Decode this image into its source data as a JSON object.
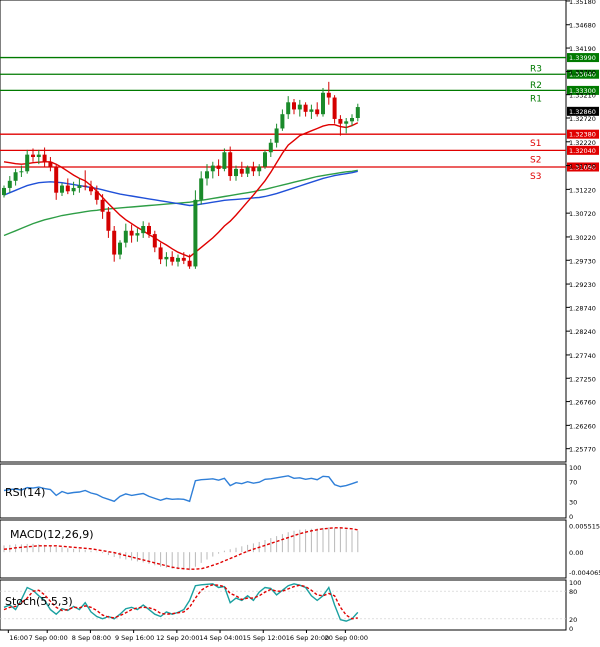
{
  "chart_data": {
    "type": "candlestick",
    "instrument_timeframe": "H4",
    "price_axis": {
      "ylim": [
        1.2549,
        1.352
      ],
      "tick_labels": [
        "1.35180",
        "1.34680",
        "1.34190",
        "1.33700",
        "1.33210",
        "1.32720",
        "1.32220",
        "1.31720",
        "1.31220",
        "1.30720",
        "1.30220",
        "1.29730",
        "1.29230",
        "1.28740",
        "1.28240",
        "1.27740",
        "1.27250",
        "1.26760",
        "1.26260",
        "1.25770"
      ],
      "tick_values": [
        1.3518,
        1.3468,
        1.3419,
        1.337,
        1.3321,
        1.3272,
        1.3222,
        1.3172,
        1.3122,
        1.3072,
        1.3022,
        1.2973,
        1.2923,
        1.2874,
        1.2824,
        1.2774,
        1.2725,
        1.2676,
        1.2626,
        1.2577
      ]
    },
    "time_axis": {
      "labels": [
        "16:00",
        "7 Sep 00:00",
        "8 Sep 08:00",
        "9 Sep 16:00",
        "12 Sep 20:00",
        "14 Sep 04:00",
        "15 Sep 12:00",
        "16 Sep 20:00",
        "20 Sep 00:00"
      ],
      "label_bar_index": [
        1,
        10,
        20,
        30,
        40,
        50,
        60,
        70,
        79
      ]
    },
    "current_price": {
      "label": "1.32860",
      "value": 1.3286
    },
    "levels": [
      {
        "name": "R3",
        "label": "1.33990",
        "value": 1.3399,
        "color": "#007a00"
      },
      {
        "name": "R2",
        "label": "1.33640",
        "value": 1.3364,
        "color": "#007a00"
      },
      {
        "name": "R1",
        "label": "1.33300",
        "value": 1.333,
        "color": "#007a00"
      },
      {
        "name": "S1",
        "label": "1.32380",
        "value": 1.3238,
        "color": "#e00000"
      },
      {
        "name": "S2",
        "label": "1.32040",
        "value": 1.3204,
        "color": "#e00000"
      },
      {
        "name": "S3",
        "label": "1.31690",
        "value": 1.3169,
        "color": "#e00000"
      }
    ],
    "candles": [
      [
        1.311,
        1.313,
        1.3105,
        1.3125
      ],
      [
        1.3125,
        1.315,
        1.3115,
        1.314
      ],
      [
        1.314,
        1.3165,
        1.313,
        1.3158
      ],
      [
        1.3158,
        1.3172,
        1.3148,
        1.316
      ],
      [
        1.316,
        1.3205,
        1.3155,
        1.3195
      ],
      [
        1.3195,
        1.3208,
        1.318,
        1.319
      ],
      [
        1.319,
        1.3205,
        1.3175,
        1.3195
      ],
      [
        1.3195,
        1.321,
        1.317,
        1.318
      ],
      [
        1.318,
        1.319,
        1.316,
        1.3168
      ],
      [
        1.3168,
        1.3175,
        1.31,
        1.3115
      ],
      [
        1.3115,
        1.3135,
        1.3108,
        1.313
      ],
      [
        1.313,
        1.3145,
        1.3112,
        1.3118
      ],
      [
        1.3118,
        1.3138,
        1.311,
        1.3125
      ],
      [
        1.3125,
        1.3145,
        1.3115,
        1.313
      ],
      [
        1.313,
        1.3162,
        1.312,
        1.3128
      ],
      [
        1.3128,
        1.314,
        1.311,
        1.3118
      ],
      [
        1.3118,
        1.313,
        1.309,
        1.31
      ],
      [
        1.31,
        1.3112,
        1.306,
        1.3075
      ],
      [
        1.3075,
        1.3085,
        1.302,
        1.3035
      ],
      [
        1.3035,
        1.3045,
        1.297,
        1.2985
      ],
      [
        1.2985,
        1.3015,
        1.2975,
        1.301
      ],
      [
        1.301,
        1.305,
        1.3,
        1.3035
      ],
      [
        1.3035,
        1.3048,
        1.301,
        1.3025
      ],
      [
        1.3025,
        1.304,
        1.3012,
        1.303
      ],
      [
        1.303,
        1.3055,
        1.302,
        1.3045
      ],
      [
        1.3045,
        1.3052,
        1.302,
        1.3028
      ],
      [
        1.3028,
        1.3035,
        1.299,
        1.3
      ],
      [
        1.3,
        1.301,
        1.2965,
        1.2975
      ],
      [
        1.2975,
        1.299,
        1.296,
        1.298
      ],
      [
        1.298,
        1.2992,
        1.2962,
        1.297
      ],
      [
        1.297,
        1.2985,
        1.296,
        1.2978
      ],
      [
        1.2978,
        1.299,
        1.2965,
        1.2972
      ],
      [
        1.2972,
        1.2985,
        1.2955,
        1.296
      ],
      [
        1.296,
        1.312,
        1.2955,
        1.31
      ],
      [
        1.31,
        1.316,
        1.309,
        1.3145
      ],
      [
        1.3145,
        1.3175,
        1.313,
        1.316
      ],
      [
        1.316,
        1.318,
        1.3145,
        1.3172
      ],
      [
        1.3172,
        1.3185,
        1.315,
        1.3165
      ],
      [
        1.3165,
        1.3208,
        1.316,
        1.32
      ],
      [
        1.32,
        1.3212,
        1.314,
        1.315
      ],
      [
        1.315,
        1.3172,
        1.314,
        1.3165
      ],
      [
        1.3165,
        1.318,
        1.3148,
        1.3155
      ],
      [
        1.3155,
        1.3172,
        1.3148,
        1.3168
      ],
      [
        1.3168,
        1.318,
        1.315,
        1.316
      ],
      [
        1.316,
        1.3175,
        1.315,
        1.317
      ],
      [
        1.317,
        1.3205,
        1.3165,
        1.32
      ],
      [
        1.32,
        1.3228,
        1.319,
        1.322
      ],
      [
        1.322,
        1.326,
        1.321,
        1.325
      ],
      [
        1.325,
        1.329,
        1.3245,
        1.328
      ],
      [
        1.328,
        1.3318,
        1.327,
        1.3305
      ],
      [
        1.3305,
        1.3312,
        1.328,
        1.329
      ],
      [
        1.329,
        1.331,
        1.3275,
        1.33
      ],
      [
        1.33,
        1.3305,
        1.3275,
        1.3285
      ],
      [
        1.3285,
        1.33,
        1.327,
        1.329
      ],
      [
        1.329,
        1.3305,
        1.3275,
        1.328
      ],
      [
        1.328,
        1.3335,
        1.3275,
        1.3325
      ],
      [
        1.3325,
        1.3348,
        1.33,
        1.3315
      ],
      [
        1.3315,
        1.332,
        1.326,
        1.327
      ],
      [
        1.327,
        1.3278,
        1.3235,
        1.326
      ],
      [
        1.326,
        1.3272,
        1.324,
        1.3265
      ],
      [
        1.3265,
        1.328,
        1.3255,
        1.3272
      ],
      [
        1.3272,
        1.3302,
        1.3265,
        1.3295
      ]
    ],
    "ma_red": [
      1.318,
      1.3178,
      1.3176,
      1.3175,
      1.3176,
      1.3178,
      1.3179,
      1.318,
      1.318,
      1.3175,
      1.3168,
      1.316,
      1.3152,
      1.3145,
      1.314,
      1.313,
      1.3118,
      1.3105,
      1.3092,
      1.308,
      1.3068,
      1.3058,
      1.305,
      1.3042,
      1.3035,
      1.3027,
      1.302,
      1.3012,
      1.3005,
      1.2997,
      1.299,
      1.2985,
      1.298,
      1.299,
      1.3,
      1.301,
      1.302,
      1.3032,
      1.3045,
      1.3055,
      1.3068,
      1.3082,
      1.3096,
      1.311,
      1.3125,
      1.314,
      1.3158,
      1.3178,
      1.3198,
      1.3215,
      1.3225,
      1.3235,
      1.324,
      1.3245,
      1.325,
      1.3255,
      1.3258,
      1.3258,
      1.3254,
      1.3252,
      1.3256,
      1.3262
    ],
    "ma_blue": [
      1.311,
      1.3115,
      1.312,
      1.3125,
      1.313,
      1.3133,
      1.3136,
      1.3137,
      1.3138,
      1.3137,
      1.3136,
      1.3134,
      1.3132,
      1.313,
      1.3128,
      1.3126,
      1.3124,
      1.3121,
      1.3118,
      1.3115,
      1.3112,
      1.311,
      1.3108,
      1.3106,
      1.3104,
      1.3102,
      1.31,
      1.3098,
      1.3096,
      1.3094,
      1.3092,
      1.309,
      1.3088,
      1.3089,
      1.3091,
      1.3093,
      1.3095,
      1.3097,
      1.3099,
      1.31,
      1.3101,
      1.3102,
      1.3103,
      1.3104,
      1.3105,
      1.3107,
      1.311,
      1.3113,
      1.3117,
      1.3121,
      1.3125,
      1.3129,
      1.3133,
      1.3137,
      1.3141,
      1.3145,
      1.3148,
      1.3151,
      1.3153,
      1.3155,
      1.3157,
      1.316
    ],
    "ma_green": [
      1.3025,
      1.303,
      1.3035,
      1.304,
      1.3045,
      1.305,
      1.3054,
      1.3058,
      1.3061,
      1.3064,
      1.3067,
      1.3069,
      1.3071,
      1.3073,
      1.3075,
      1.3077,
      1.3078,
      1.308,
      1.3081,
      1.3082,
      1.3083,
      1.3084,
      1.3085,
      1.3086,
      1.3087,
      1.3088,
      1.3089,
      1.309,
      1.3091,
      1.3092,
      1.3093,
      1.3094,
      1.3095,
      1.3097,
      1.3099,
      1.3101,
      1.3103,
      1.3105,
      1.3107,
      1.3109,
      1.3111,
      1.3113,
      1.3115,
      1.3117,
      1.312,
      1.3122,
      1.3125,
      1.3128,
      1.3131,
      1.3134,
      1.3137,
      1.314,
      1.3143,
      1.3146,
      1.3149,
      1.3151,
      1.3153,
      1.3155,
      1.3157,
      1.3159,
      1.316,
      1.3162
    ],
    "rsi": {
      "label": "RSI(14)",
      "ylim": [
        0,
        100
      ],
      "tick_labels": [
        "100",
        "70",
        "30",
        "0"
      ],
      "tick_values": [
        100,
        70,
        30,
        0
      ],
      "values": [
        52,
        54,
        55,
        53,
        58,
        57,
        59,
        56,
        54,
        42,
        50,
        46,
        48,
        49,
        52,
        47,
        44,
        38,
        34,
        30,
        40,
        45,
        42,
        44,
        46,
        40,
        36,
        32,
        36,
        34,
        35,
        34,
        30,
        72,
        74,
        75,
        76,
        73,
        77,
        62,
        68,
        66,
        70,
        67,
        69,
        75,
        76,
        78,
        80,
        82,
        77,
        78,
        75,
        77,
        74,
        81,
        80,
        64,
        60,
        62,
        66,
        70
      ]
    },
    "macd": {
      "label": "MACD(12,26,9)",
      "ylim": [
        -0.0049,
        0.0062
      ],
      "tick_labels": [
        "0.005515",
        "0.00",
        "-0.004065"
      ],
      "tick_values": [
        0.005515,
        0.0,
        -0.004065
      ],
      "histogram": [
        0.0014,
        0.0015,
        0.0016,
        0.0016,
        0.0017,
        0.0017,
        0.0016,
        0.0015,
        0.0014,
        0.0011,
        0.001,
        0.0008,
        0.0007,
        0.0006,
        0.0005,
        0.0003,
        0.0001,
        -0.0002,
        -0.0006,
        -0.001,
        -0.0013,
        -0.0015,
        -0.0017,
        -0.0019,
        -0.0021,
        -0.0024,
        -0.0027,
        -0.003,
        -0.0032,
        -0.0034,
        -0.0035,
        -0.0036,
        -0.0037,
        -0.003,
        -0.0022,
        -0.0015,
        -0.0009,
        -0.0003,
        0.0003,
        0.0006,
        0.0009,
        0.0012,
        0.0015,
        0.0018,
        0.0021,
        0.0025,
        0.0029,
        0.0033,
        0.0037,
        0.0041,
        0.0044,
        0.0046,
        0.0047,
        0.0048,
        0.0049,
        0.005,
        0.0051,
        0.005,
        0.0049,
        0.0047,
        0.0045,
        0.0044
      ],
      "signal": [
        0.0006,
        0.0007,
        0.0009,
        0.001,
        0.0011,
        0.0012,
        0.0013,
        0.0013,
        0.0013,
        0.0013,
        0.0012,
        0.0011,
        0.001,
        0.0009,
        0.0008,
        0.0007,
        0.0005,
        0.0003,
        0.0001,
        -0.0001,
        -0.0004,
        -0.0007,
        -0.001,
        -0.0013,
        -0.0016,
        -0.0019,
        -0.0022,
        -0.0025,
        -0.0028,
        -0.0031,
        -0.0033,
        -0.0034,
        -0.0035,
        -0.0035,
        -0.0034,
        -0.0031,
        -0.0027,
        -0.0023,
        -0.0018,
        -0.0013,
        -0.0008,
        -0.0003,
        0.0002,
        0.0006,
        0.001,
        0.0014,
        0.0018,
        0.0022,
        0.0026,
        0.003,
        0.0034,
        0.0038,
        0.0041,
        0.0044,
        0.0046,
        0.0048,
        0.0049,
        0.005,
        0.005,
        0.0049,
        0.0048,
        0.0046
      ]
    },
    "stoch": {
      "label": "Stoch(5,5,3)",
      "ylim": [
        0,
        100
      ],
      "tick_labels": [
        "100",
        "80",
        "20",
        "0"
      ],
      "tick_values": [
        100,
        80,
        20,
        0
      ],
      "main": [
        45,
        50,
        40,
        62,
        88,
        82,
        70,
        60,
        40,
        30,
        42,
        38,
        47,
        40,
        55,
        35,
        25,
        20,
        25,
        20,
        30,
        42,
        45,
        40,
        50,
        40,
        30,
        25,
        35,
        30,
        34,
        40,
        60,
        92,
        94,
        95,
        96,
        88,
        90,
        55,
        65,
        60,
        70,
        60,
        78,
        88,
        86,
        72,
        82,
        92,
        96,
        93,
        88,
        70,
        60,
        70,
        88,
        50,
        18,
        15,
        20,
        34
      ],
      "signal": [
        40,
        45,
        47,
        55,
        65,
        80,
        82,
        72,
        58,
        45,
        38,
        40,
        45,
        44,
        48,
        45,
        38,
        28,
        24,
        22,
        27,
        33,
        40,
        44,
        45,
        44,
        40,
        32,
        30,
        31,
        33,
        35,
        45,
        65,
        82,
        90,
        94,
        93,
        90,
        75,
        70,
        62,
        65,
        65,
        70,
        78,
        84,
        80,
        80,
        85,
        90,
        93,
        90,
        82,
        72,
        70,
        75,
        70,
        45,
        28,
        20,
        22
      ]
    }
  }
}
